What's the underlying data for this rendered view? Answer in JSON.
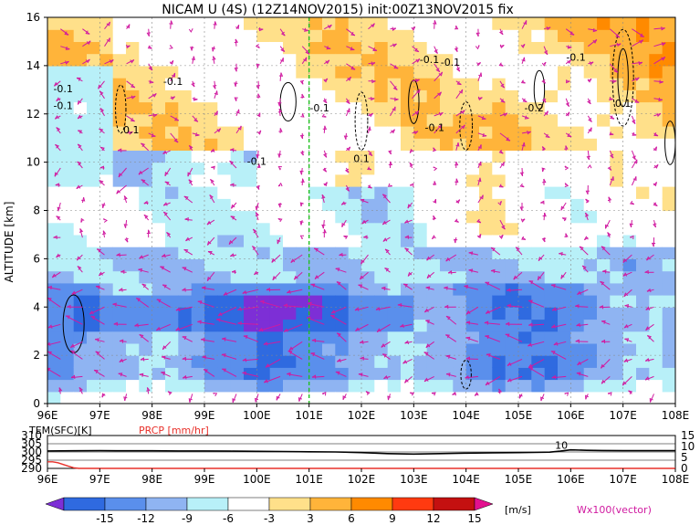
{
  "title": "NICAM U (4S) (12Z14NOV2015) init:00Z13NOV2015 fix",
  "chart_data": [
    {
      "type": "heatmap",
      "name": "cross-section",
      "ylabel": "ALTITUDE [km]",
      "x_ticks": [
        "96E",
        "97E",
        "98E",
        "99E",
        "100E",
        "101E",
        "102E",
        "103E",
        "104E",
        "105E",
        "106E",
        "107E",
        "108E"
      ],
      "xlim": [
        96,
        108
      ],
      "y_ticks": [
        "0",
        "2",
        "4",
        "6",
        "8",
        "10",
        "12",
        "14",
        "16"
      ],
      "ylim": [
        0,
        16
      ],
      "grid": true,
      "contour_labels": [
        "-0.1",
        "-0.1",
        "0.1",
        "-0.1",
        "-0.1",
        "-0.1",
        "0.1",
        "-0.1",
        "-0.1",
        "-0.1",
        "-0.1",
        "-0.2",
        "0.1"
      ],
      "vertical_line_lon": 101,
      "color_levels": [
        -15,
        -12,
        -9,
        -6,
        -3,
        3,
        6,
        9,
        12,
        15
      ],
      "colors": [
        "#7d2fd6",
        "#2f6ae0",
        "#5a8fec",
        "#8fb4f2",
        "#b8f0f8",
        "#ffffff",
        "#ffe08a",
        "#ffb43a",
        "#ff8a00",
        "#ff3a10",
        "#c41010",
        "#e3118f"
      ],
      "colorbar_labels": [
        "-15",
        "-12",
        "-9",
        "-6",
        "-3",
        "3",
        "6",
        "9",
        "12",
        "15"
      ],
      "colorbar_unit": "[m/s]",
      "vector_label": "Wx100(vector)"
    },
    {
      "type": "line",
      "name": "surface",
      "left_axis_label": "TEM(SFC)[K]",
      "left_ticks": [
        "310",
        "305",
        "300",
        "295",
        "290"
      ],
      "right_axis_label": "PRCP [mm/hr]",
      "right_ticks": [
        "15",
        "10",
        "5",
        "0"
      ],
      "x_ticks": [
        "96E",
        "97E",
        "98E",
        "99E",
        "100E",
        "101E",
        "102E",
        "103E",
        "104E",
        "105E",
        "106E",
        "107E",
        "108E"
      ],
      "temperature_series": {
        "x": [
          96,
          96.5,
          97,
          97.5,
          98,
          98.5,
          99,
          99.5,
          100,
          100.5,
          101,
          101.5,
          102,
          102.5,
          103,
          103.5,
          104,
          104.5,
          105,
          105.3,
          105.6,
          105.8,
          106,
          106.3,
          106.6,
          107,
          107.5,
          108
        ],
        "y": [
          300.6,
          300.7,
          300.8,
          300.7,
          300.7,
          300.6,
          300.6,
          300.5,
          300.4,
          300.3,
          300.1,
          300.0,
          299.6,
          299.0,
          298.7,
          299.0,
          299.3,
          299.5,
          299.6,
          299.7,
          299.9,
          300.5,
          301.3,
          301.0,
          300.9,
          300.8,
          300.8,
          300.8
        ]
      },
      "precip_series": {
        "x": [
          96,
          96.1,
          96.2,
          96.3,
          96.4,
          96.5,
          96.6,
          97,
          108
        ],
        "y": [
          3.0,
          3.0,
          2.6,
          1.8,
          1.0,
          0.3,
          0,
          0,
          0
        ]
      },
      "annotation": "10"
    }
  ]
}
